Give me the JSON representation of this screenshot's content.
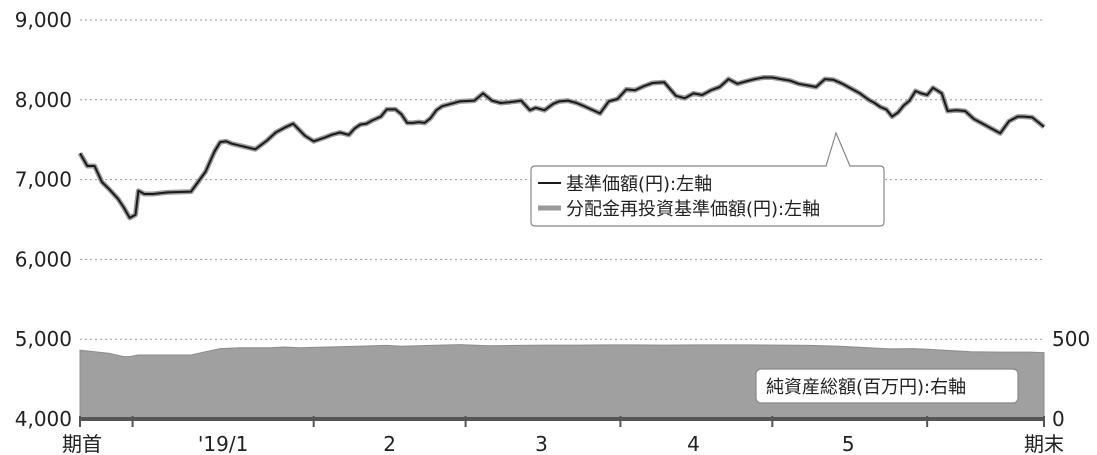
{
  "chart_data": {
    "type": "line",
    "title": "",
    "x_categories": [
      "期首",
      "'19/1",
      "2",
      "3",
      "4",
      "5",
      "期末"
    ],
    "y_left": {
      "ticks": [
        "9,000",
        "8,000",
        "7,000",
        "6,000",
        "5,000",
        "4,000"
      ],
      "min": 4000,
      "max": 9000
    },
    "y_right": {
      "ticks": [
        "500",
        "0"
      ],
      "min": 0,
      "max": 500
    },
    "grid": "horizontal-dashed",
    "legend_main": [
      "基準価額(円):左軸",
      "分配金再投資基準価額(円):左軸"
    ],
    "legend_area": "純資産総額(百万円):右軸",
    "colors": {
      "line": "#1a1a1a",
      "line_shadow": "#9a9a9a",
      "area": "#a0a0a0",
      "area_edge": "#8c8c8c",
      "grid": "#9a9a9a"
    },
    "series": [
      {
        "name": "基準価額(円):左軸",
        "axis": "left",
        "x": [
          0.0,
          0.25,
          0.5,
          0.75,
          1.0,
          1.3,
          1.5,
          1.7,
          1.9,
          2.0,
          2.2,
          2.5,
          3.0,
          3.8,
          4.3,
          4.6,
          4.8,
          5.0,
          5.2,
          6.0,
          6.4,
          6.7,
          7.0,
          7.3,
          7.7,
          8.0,
          8.4,
          8.6,
          8.9,
          9.2,
          9.4,
          9.6,
          9.8,
          10.0,
          10.3,
          10.5,
          10.8,
          11.0,
          11.2,
          11.4,
          11.6,
          11.8,
          12.0,
          12.2,
          12.4,
          12.7,
          13.0,
          13.5,
          13.8,
          14.1,
          14.4,
          14.7,
          15.1,
          15.4,
          15.6,
          15.9,
          16.2,
          16.4,
          16.7,
          17.0,
          17.2,
          17.5,
          17.8,
          18.1,
          18.4,
          18.7,
          19.0,
          19.3,
          19.6,
          20.0,
          20.4,
          20.7,
          21.0,
          21.3,
          21.6,
          21.9,
          22.2,
          22.5,
          22.8,
          23.1,
          23.4,
          23.7,
          24.0,
          24.3,
          24.6,
          24.9,
          25.2,
          25.5,
          25.8,
          26.1,
          26.4,
          26.7,
          27.0,
          27.2,
          27.4,
          27.6,
          27.8,
          28.0,
          28.2,
          28.4,
          28.6,
          28.8,
          29.0,
          29.2,
          29.5,
          29.7,
          30.0,
          30.3,
          30.6,
          30.9,
          31.2,
          31.5,
          31.8,
          32.1,
          32.3,
          32.6,
          33.0
        ],
        "y": [
          7330,
          7170,
          7170,
          6970,
          6880,
          6760,
          6650,
          6520,
          6560,
          6860,
          6820,
          6820,
          6840,
          6850,
          7100,
          7350,
          7470,
          7480,
          7450,
          7380,
          7490,
          7590,
          7650,
          7700,
          7550,
          7480,
          7530,
          7560,
          7590,
          7560,
          7640,
          7690,
          7700,
          7740,
          7790,
          7880,
          7880,
          7820,
          7710,
          7710,
          7720,
          7710,
          7770,
          7870,
          7920,
          7950,
          7980,
          7990,
          8080,
          7990,
          7960,
          7970,
          7990,
          7870,
          7900,
          7870,
          7950,
          7980,
          7990,
          7960,
          7930,
          7880,
          7830,
          7980,
          8010,
          8130,
          8120,
          8170,
          8210,
          8220,
          8050,
          8020,
          8080,
          8060,
          8120,
          8160,
          8260,
          8200,
          8230,
          8260,
          8280,
          8280,
          8260,
          8240,
          8200,
          8180,
          8160,
          8260,
          8250,
          8200,
          8140,
          8080,
          8000,
          7960,
          7910,
          7880,
          7790,
          7840,
          7930,
          7990,
          8110,
          8080,
          8060,
          8150,
          8080,
          7860,
          7870,
          7860,
          7760,
          7700,
          7640,
          7580,
          7730,
          7790,
          7790,
          7780,
          7660
        ]
      },
      {
        "name": "純資産総額(百万円):右軸",
        "axis": "right",
        "x": [
          0.0,
          0.5,
          1.0,
          1.5,
          1.7,
          2.0,
          2.5,
          3.0,
          3.8,
          4.3,
          4.8,
          5.5,
          6.5,
          7.0,
          7.5,
          8.5,
          9.5,
          10.5,
          11.0,
          12.0,
          13.0,
          14.0,
          15.0,
          16.0,
          17.0,
          18.0,
          19.0,
          20.0,
          21.0,
          22.0,
          23.0,
          24.0,
          25.0,
          26.0,
          27.0,
          27.8,
          28.5,
          29.0,
          29.6,
          30.5,
          31.5,
          32.5,
          33.0
        ],
        "y": [
          430,
          420,
          410,
          390,
          390,
          400,
          400,
          400,
          400,
          420,
          440,
          445,
          445,
          450,
          445,
          450,
          455,
          460,
          455,
          460,
          465,
          458,
          460,
          462,
          462,
          463,
          463,
          462,
          463,
          463,
          463,
          462,
          460,
          455,
          445,
          438,
          440,
          436,
          430,
          420,
          418,
          418,
          415
        ]
      }
    ]
  }
}
